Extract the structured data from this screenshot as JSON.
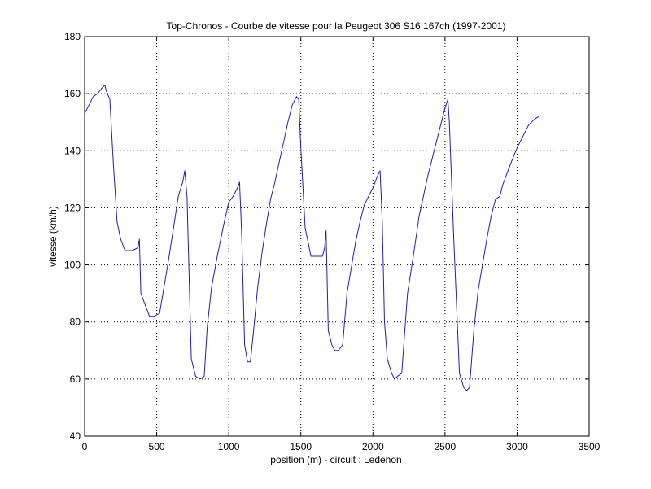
{
  "chart_data": {
    "type": "line",
    "title": "Top-Chronos - Courbe de vitesse pour la Peugeot 306 S16 167ch (1997-2001)",
    "xlabel": "position (m) - circuit : Ledenon",
    "ylabel": "vitesse (km/h)",
    "xlim": [
      0,
      3500
    ],
    "ylim": [
      40,
      180
    ],
    "xticks": [
      0,
      500,
      1000,
      1500,
      2000,
      2500,
      3000,
      3500
    ],
    "yticks": [
      40,
      60,
      80,
      100,
      120,
      140,
      160,
      180
    ],
    "grid": true,
    "line_color": "#1f1fb4",
    "series": [
      {
        "x": [
          0,
          30,
          60,
          90,
          120,
          140,
          150,
          175,
          200,
          225,
          250,
          280,
          330,
          370,
          380,
          390,
          420,
          450,
          480,
          520,
          550,
          580,
          620,
          650,
          680,
          695,
          710,
          740,
          770,
          800,
          830,
          850,
          880,
          920,
          960,
          1000,
          1030,
          1060,
          1075,
          1090,
          1110,
          1130,
          1150,
          1170,
          1200,
          1230,
          1260,
          1290,
          1320,
          1350,
          1380,
          1410,
          1440,
          1470,
          1485,
          1500,
          1530,
          1550,
          1570,
          1590,
          1620,
          1650,
          1665,
          1675,
          1690,
          1715,
          1735,
          1760,
          1790,
          1820,
          1850,
          1880,
          1910,
          1940,
          1970,
          2000,
          2030,
          2050,
          2065,
          2080,
          2100,
          2130,
          2150,
          2170,
          2200,
          2240,
          2280,
          2320,
          2350,
          2380,
          2410,
          2440,
          2470,
          2500,
          2520,
          2530,
          2560,
          2600,
          2630,
          2650,
          2670,
          2700,
          2730,
          2760,
          2790,
          2820,
          2850,
          2880,
          2900,
          2930,
          2960,
          3000,
          3040,
          3080,
          3120,
          3150
        ],
        "y": [
          153,
          156,
          159,
          160,
          162,
          163,
          161,
          158,
          135,
          115,
          109,
          105,
          105,
          106,
          109,
          90,
          86,
          82,
          82,
          83,
          92,
          101,
          114,
          124,
          129,
          133,
          124,
          67,
          61,
          60,
          61,
          78,
          92,
          103,
          113,
          122,
          124,
          127,
          129,
          110,
          72,
          66,
          66,
          76,
          92,
          104,
          114,
          123,
          129,
          136,
          143,
          150,
          156,
          159,
          158,
          141,
          113,
          108,
          103,
          103,
          103,
          103,
          106,
          112,
          77,
          72,
          70,
          70,
          72,
          90,
          99,
          108,
          115,
          121,
          124,
          127,
          131,
          133,
          115,
          80,
          67,
          62,
          60,
          61,
          62,
          90,
          103,
          117,
          124,
          131,
          137,
          143,
          149,
          155,
          158,
          150,
          110,
          62,
          57,
          56,
          57,
          77,
          91,
          100,
          109,
          117,
          123,
          124,
          128,
          132,
          136,
          141,
          145,
          149,
          151,
          152
        ]
      }
    ]
  }
}
